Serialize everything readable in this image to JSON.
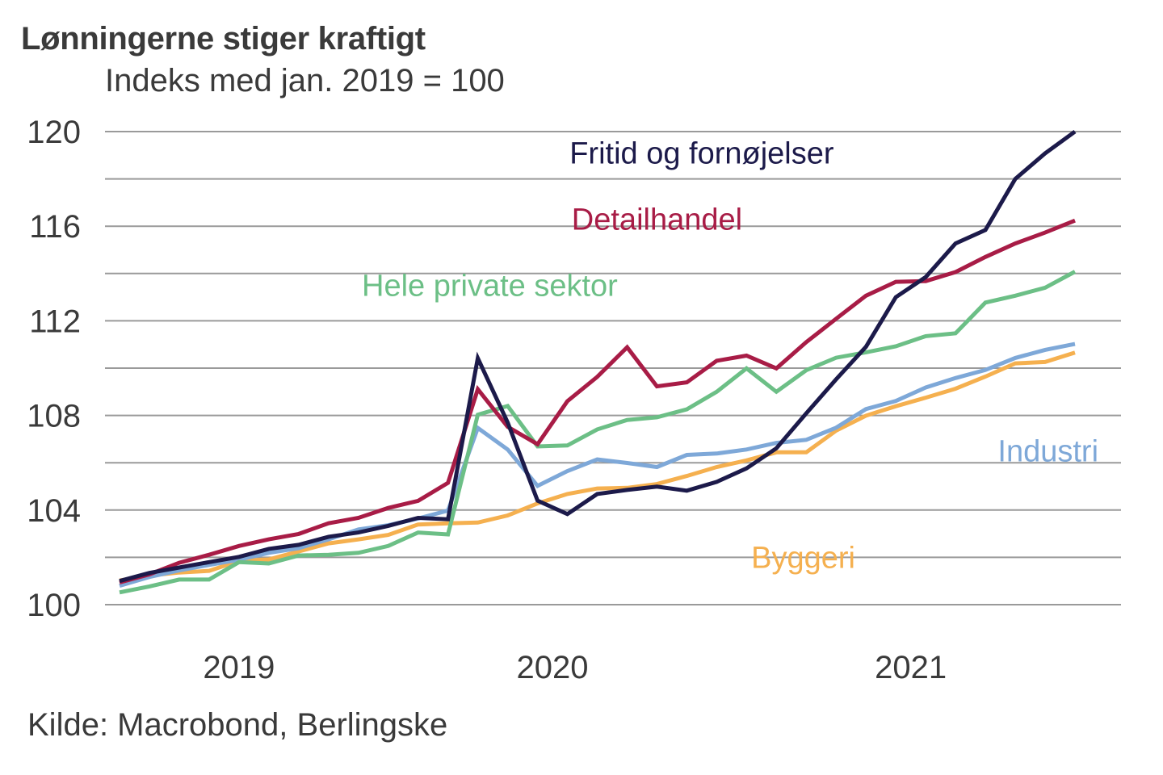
{
  "header": {
    "title": "Lønningerne stiger kraftigt",
    "subtitle": "Indeks med jan. 2019 = 100"
  },
  "footer": {
    "source": "Kilde: Macrobond, Berlingske"
  },
  "chart_data": {
    "type": "line",
    "title": "Lønningerne stiger kraftigt",
    "subtitle": "Indeks med jan. 2019 = 100",
    "xlabel": "",
    "ylabel": "",
    "ylim": [
      100,
      120
    ],
    "yticks": [
      100,
      104,
      108,
      112,
      116,
      120
    ],
    "ytick_labels": [
      "100",
      "104",
      "108",
      "112",
      "116",
      "120"
    ],
    "ygrid_step": 2,
    "grid": true,
    "x_count": 33,
    "xtick_labels": [
      {
        "label": "2019",
        "x_index": 4
      },
      {
        "label": "2020",
        "x_index": 14.5
      },
      {
        "label": "2021",
        "x_index": 26.5
      }
    ],
    "legend": "inline-labels",
    "series": [
      {
        "name": "Fritid og fornøjelser",
        "color": "#1c1a4a",
        "label_anchor": {
          "x_index": 19.5,
          "value": 119.1
        },
        "values": [
          101.0,
          101.34,
          101.57,
          101.8,
          102.02,
          102.36,
          102.53,
          102.87,
          103.05,
          103.33,
          103.67,
          103.61,
          110.42,
          107.7,
          104.4,
          103.83,
          104.68,
          104.85,
          104.99,
          104.82,
          105.19,
          105.76,
          106.61,
          108.09,
          109.53,
          110.9,
          113.0,
          113.85,
          115.27,
          115.84,
          118.0,
          119.08,
          120.0
        ]
      },
      {
        "name": "Detailhandel",
        "color": "#a81c46",
        "label_anchor": {
          "x_index": 18,
          "value": 116.3
        },
        "values": [
          100.94,
          101.28,
          101.77,
          102.11,
          102.48,
          102.76,
          102.99,
          103.44,
          103.67,
          104.09,
          104.39,
          105.15,
          109.11,
          107.52,
          106.78,
          108.6,
          109.63,
          110.88,
          109.23,
          109.4,
          110.31,
          110.53,
          109.99,
          111.1,
          112.09,
          113.06,
          113.65,
          113.68,
          114.06,
          114.7,
          115.27,
          115.73,
          116.24
        ]
      },
      {
        "name": "Hele private sektor",
        "color": "#6cbf86",
        "label_anchor": {
          "x_index": 12.4,
          "value": 113.5
        },
        "values": [
          100.52,
          100.77,
          101.06,
          101.06,
          101.8,
          101.74,
          102.08,
          102.11,
          102.19,
          102.48,
          103.05,
          102.97,
          108.03,
          108.4,
          106.69,
          106.73,
          107.41,
          107.81,
          107.92,
          108.26,
          109.0,
          109.99,
          109.0,
          109.91,
          110.44,
          110.67,
          110.92,
          111.35,
          111.47,
          112.77,
          113.06,
          113.4,
          114.08
        ]
      },
      {
        "name": "Industri",
        "color": "#7ea8d8",
        "label_anchor": {
          "x_index": 31.1,
          "value": 106.5
        },
        "values": [
          100.8,
          101.17,
          101.45,
          101.68,
          101.9,
          102.19,
          102.39,
          102.76,
          103.18,
          103.36,
          103.64,
          103.98,
          107.47,
          106.56,
          105.02,
          105.65,
          106.14,
          105.99,
          105.82,
          106.33,
          106.39,
          106.56,
          106.84,
          106.97,
          107.48,
          108.27,
          108.61,
          109.18,
          109.58,
          109.92,
          110.43,
          110.77,
          111.02
        ]
      },
      {
        "name": "Byggeri",
        "color": "#f5b04f",
        "label_anchor": {
          "x_index": 22.9,
          "value": 102.0
        },
        "values": [
          101.02,
          101.23,
          101.36,
          101.43,
          101.85,
          101.91,
          102.25,
          102.59,
          102.76,
          102.95,
          103.39,
          103.44,
          103.47,
          103.77,
          104.28,
          104.68,
          104.91,
          104.94,
          105.1,
          105.44,
          105.82,
          106.1,
          106.44,
          106.44,
          107.36,
          107.99,
          108.39,
          108.75,
          109.13,
          109.64,
          110.2,
          110.26,
          110.66
        ]
      }
    ]
  }
}
